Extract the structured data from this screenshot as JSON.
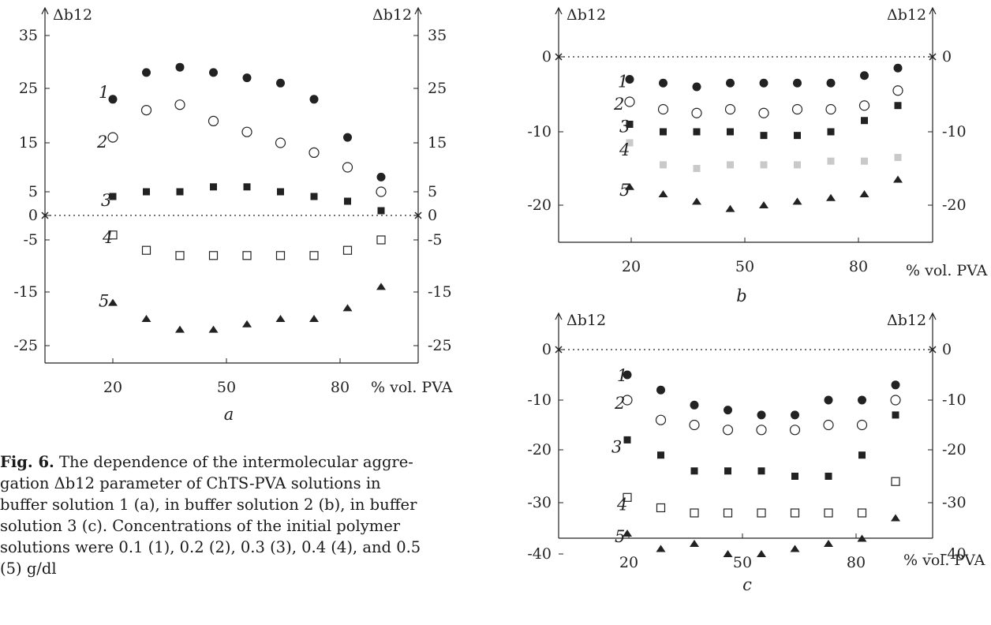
{
  "caption": {
    "label": "Fig. 6.",
    "lines": [
      "gation Δb12 parameter of ChTS-PVA solutions in",
      "buffer solution 1 (a), in buffer solution 2 (b), in buffer",
      "solution 3 (c). Concentrations of the initial polymer",
      "solutions were 0.1 (1), 0.2 (2), 0.3 (3), 0.4 (4), and 0.5",
      "(5) g/dl"
    ],
    "first_line_rest": "The dependence of the intermolecular aggre-"
  },
  "chart_data": [
    {
      "id": "a",
      "panel_label": "a",
      "type": "scatter",
      "ylabel_left": "Δb12",
      "ylabel_right": "Δb12",
      "xlabel": "% vol. PVA",
      "x_ticks": [
        "20",
        "50",
        "80"
      ],
      "y_ticks_left": [
        "35",
        "25",
        "15",
        "5",
        "0",
        "-5",
        "-15",
        "-25"
      ],
      "y_ticks_right": [
        "35",
        "25",
        "15",
        "5",
        "0",
        "-5",
        "-15",
        "-25"
      ],
      "ylim": [
        -31,
        40
      ],
      "xlim": [
        5,
        100
      ],
      "zero_line": true,
      "series": [
        {
          "name": "1",
          "marker": "filled-circle",
          "x": [
            10,
            20,
            30,
            40,
            50,
            60,
            70,
            80,
            90
          ],
          "y": [
            23,
            28,
            29,
            28,
            27,
            26,
            23,
            16,
            8
          ]
        },
        {
          "name": "2",
          "marker": "open-circle",
          "x": [
            10,
            20,
            30,
            40,
            50,
            60,
            70,
            80,
            90
          ],
          "y": [
            16,
            21,
            22,
            19,
            17,
            15,
            13,
            10,
            5
          ]
        },
        {
          "name": "3",
          "marker": "filled-square",
          "x": [
            10,
            20,
            30,
            40,
            50,
            60,
            70,
            80,
            90
          ],
          "y": [
            4,
            5,
            5,
            6,
            6,
            5,
            4,
            3,
            1
          ]
        },
        {
          "name": "4",
          "marker": "open-square",
          "x": [
            10,
            20,
            30,
            40,
            50,
            60,
            70,
            80,
            90
          ],
          "y": [
            -4,
            -7,
            -8,
            -8,
            -8,
            -8,
            -8,
            -7,
            -5
          ]
        },
        {
          "name": "5",
          "marker": "filled-triangle",
          "x": [
            10,
            20,
            30,
            40,
            50,
            60,
            70,
            80,
            90
          ],
          "y": [
            -17,
            -20,
            -22,
            -22,
            -21,
            -20,
            -20,
            -18,
            -14
          ]
        }
      ]
    },
    {
      "id": "b",
      "panel_label": "b",
      "type": "scatter",
      "ylabel_left": "Δb12",
      "ylabel_right": "Δb12",
      "xlabel": "% vol. PVA",
      "x_ticks": [
        "20",
        "50",
        "80"
      ],
      "y_ticks_left": [
        "0",
        "-10",
        "-20"
      ],
      "y_ticks_right": [
        "0",
        "-10",
        "-20"
      ],
      "ylim": [
        -25,
        7
      ],
      "xlim": [
        5,
        100
      ],
      "zero_line": true,
      "series": [
        {
          "name": "1",
          "marker": "filled-circle",
          "x": [
            10,
            20,
            30,
            40,
            50,
            60,
            70,
            80,
            90
          ],
          "y": [
            -3,
            -3.5,
            -4,
            -3.5,
            -3.5,
            -3.5,
            -3.5,
            -2.5,
            -1.5
          ]
        },
        {
          "name": "2",
          "marker": "open-circle",
          "x": [
            10,
            20,
            30,
            40,
            50,
            60,
            70,
            80,
            90
          ],
          "y": [
            -6,
            -7,
            -7.5,
            -7,
            -7.5,
            -7,
            -7,
            -6.5,
            -4.5
          ]
        },
        {
          "name": "3",
          "marker": "filled-square",
          "x": [
            10,
            20,
            30,
            40,
            50,
            60,
            70,
            80,
            90
          ],
          "y": [
            -9,
            -10,
            -10,
            -10,
            -10.5,
            -10.5,
            -10,
            -8.5,
            -6.5
          ]
        },
        {
          "name": "4",
          "marker": "gray-square",
          "x": [
            10,
            20,
            30,
            40,
            50,
            60,
            70,
            80,
            90
          ],
          "y": [
            -11.5,
            -14.5,
            -15,
            -14.5,
            -14.5,
            -14.5,
            -14,
            -14,
            -13.5
          ]
        },
        {
          "name": "5",
          "marker": "filled-triangle",
          "x": [
            10,
            20,
            30,
            40,
            50,
            60,
            70,
            80,
            90
          ],
          "y": [
            -17.5,
            -18.5,
            -19.5,
            -20.5,
            -20,
            -19.5,
            -19,
            -18.5,
            -16.5
          ]
        }
      ]
    },
    {
      "id": "c",
      "panel_label": "c",
      "type": "scatter",
      "ylabel_left": "Δb12",
      "ylabel_right": "Δb12",
      "xlabel": "% vol. PVA",
      "x_ticks": [
        "20",
        "50",
        "80"
      ],
      "y_ticks_left": [
        "0",
        "-10",
        "-20",
        "-30",
        "-40"
      ],
      "y_ticks_right": [
        "0",
        "-10",
        "-20",
        "-30",
        "-40"
      ],
      "ylim": [
        -46,
        7
      ],
      "xlim": [
        5,
        100
      ],
      "zero_line": true,
      "series": [
        {
          "name": "1",
          "marker": "filled-circle",
          "x": [
            10,
            20,
            30,
            40,
            50,
            60,
            70,
            80,
            90
          ],
          "y": [
            -5,
            -8,
            -11,
            -12,
            -13,
            -13,
            -10,
            -10,
            -7
          ]
        },
        {
          "name": "2",
          "marker": "open-circle",
          "x": [
            10,
            20,
            30,
            40,
            50,
            60,
            70,
            80,
            90
          ],
          "y": [
            -10,
            -14,
            -15,
            -16,
            -16,
            -16,
            -15,
            -15,
            -10
          ]
        },
        {
          "name": "3",
          "marker": "filled-square",
          "x": [
            10,
            20,
            30,
            40,
            50,
            60,
            70,
            80,
            90
          ],
          "y": [
            -18,
            -21,
            -24,
            -24,
            -24,
            -25,
            -25,
            -21,
            -13
          ]
        },
        {
          "name": "4",
          "marker": "open-square",
          "x": [
            10,
            20,
            30,
            40,
            50,
            60,
            70,
            80,
            90
          ],
          "y": [
            -29,
            -31,
            -32,
            -32,
            -32,
            -32,
            -32,
            -32,
            -26
          ]
        },
        {
          "name": "5",
          "marker": "filled-triangle",
          "x": [
            10,
            20,
            30,
            40,
            50,
            60,
            70,
            80,
            90
          ],
          "y": [
            -36,
            -39,
            -38,
            -40,
            -40,
            -39,
            -38,
            -37,
            -33
          ]
        }
      ]
    }
  ]
}
